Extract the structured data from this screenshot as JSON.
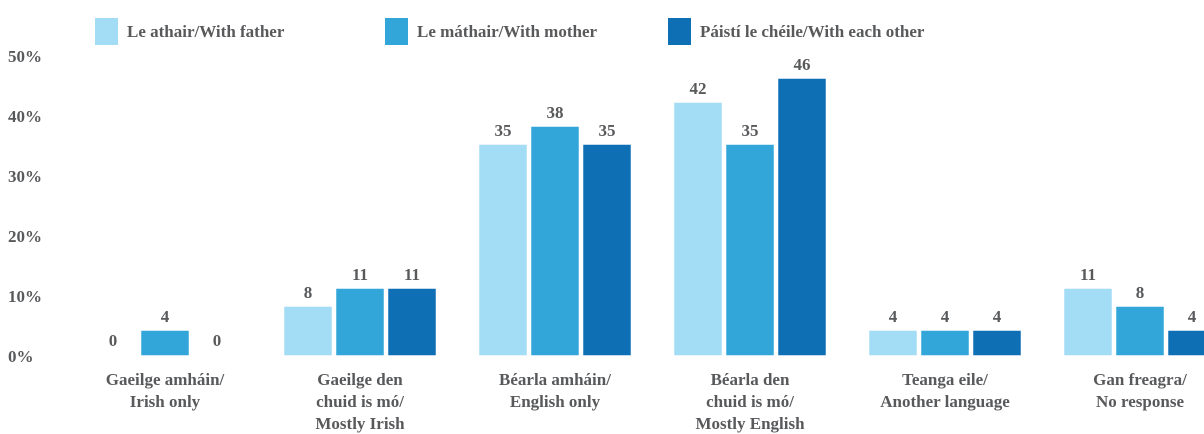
{
  "chart_data": {
    "type": "bar",
    "categories": [
      "Gaeilge amháin/\nIrish only",
      "Gaeilge den\nchuid is mó/\nMostly Irish",
      "Béarla amháin/\nEnglish only",
      "Béarla den\nchuid is mó/\nMostly English",
      "Teanga eile/\nAnother language",
      "Gan freagra/\nNo response"
    ],
    "series": [
      {
        "name": "Le athair/With father",
        "color": "#a3dcf5",
        "values": [
          0,
          8,
          35,
          42,
          4,
          11
        ]
      },
      {
        "name": "Le máthair/With mother",
        "color": "#33a6d9",
        "values": [
          4,
          11,
          38,
          35,
          4,
          8
        ]
      },
      {
        "name": "Páistí le chéile/With each other",
        "color": "#0f6fb5",
        "values": [
          0,
          11,
          35,
          46,
          4,
          4
        ]
      }
    ],
    "ylim": [
      0,
      50
    ],
    "yticks": [
      {
        "value": 0,
        "label": "0%"
      },
      {
        "value": 10,
        "label": "10%"
      },
      {
        "value": 20,
        "label": "20%"
      },
      {
        "value": 30,
        "label": "30%"
      },
      {
        "value": 40,
        "label": "40%"
      },
      {
        "value": 50,
        "label": "50%"
      }
    ],
    "grid": false,
    "legend": "top"
  }
}
